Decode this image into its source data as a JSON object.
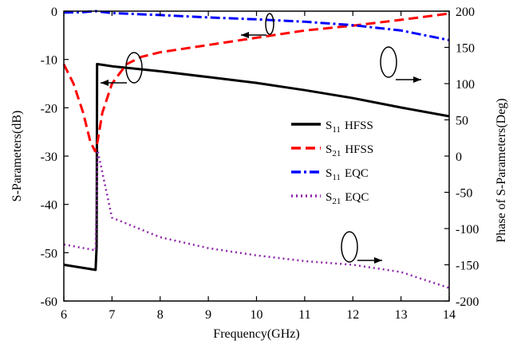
{
  "chart_data": {
    "type": "line",
    "xlabel": "Frequency(GHz)",
    "ylabel": "S-Parameters(dB)",
    "y2label": "Phase of S-Parameters(Deg)",
    "xlim": [
      6,
      14
    ],
    "ylim": [
      -60,
      0
    ],
    "y2lim": [
      -200,
      200
    ],
    "xticks": [
      6,
      7,
      8,
      9,
      10,
      11,
      12,
      13,
      14
    ],
    "yticks": [
      0,
      -10,
      -20,
      -30,
      -40,
      -50,
      -60
    ],
    "y2ticks": [
      200,
      150,
      100,
      50,
      0,
      -50,
      -100,
      -150,
      -200
    ],
    "grid": false,
    "legend_position": "center-right",
    "series": [
      {
        "name": "S11 HFSS",
        "base": "S",
        "sub": "11",
        "suffix": "HFSS",
        "color": "#000000",
        "dash": "solid",
        "axis": "phase",
        "x": [
          6,
          6.66,
          6.68,
          6.69,
          7,
          8,
          9,
          10,
          11,
          12,
          13,
          14
        ],
        "y": [
          -150,
          -157,
          -125,
          127,
          124,
          117,
          109,
          101,
          91,
          80,
          67,
          55
        ]
      },
      {
        "name": "S21 HFSS",
        "base": "S",
        "sub": "21",
        "suffix": "HFSS",
        "color": "#ff0000",
        "dash": "dashed",
        "axis": "mag",
        "x": [
          6,
          6.2,
          6.4,
          6.55,
          6.65,
          6.7,
          6.8,
          7,
          7.3,
          7.6,
          8,
          9,
          10,
          11,
          12,
          13,
          14
        ],
        "y": [
          -11,
          -15,
          -21,
          -27,
          -29,
          -27,
          -21,
          -15,
          -11,
          -9.5,
          -8.5,
          -7,
          -5.5,
          -4,
          -3,
          -1.8,
          -0.5
        ]
      },
      {
        "name": "S11 EQC",
        "base": "S",
        "sub": "11",
        "suffix": "EQC",
        "color": "#0000ff",
        "dash": "dashdot",
        "axis": "mag",
        "x": [
          6,
          6.4,
          6.66,
          7,
          8,
          9,
          10,
          11,
          12,
          13,
          14
        ],
        "y": [
          -0.3,
          -0.2,
          0,
          -0.4,
          -0.8,
          -1.3,
          -1.7,
          -2.2,
          -2.9,
          -4.0,
          -6.0
        ]
      },
      {
        "name": "S21 EQC",
        "base": "S",
        "sub": "21",
        "suffix": "EQC",
        "color": "#8e24aa",
        "dash": "dotted",
        "axis": "phase",
        "x": [
          6,
          6.66,
          6.7,
          7,
          8,
          9,
          10,
          11,
          12,
          13,
          14
        ],
        "y": [
          -122,
          -130,
          8,
          -85,
          -112,
          -127,
          -137,
          -145,
          -150,
          -160,
          -182
        ]
      }
    ]
  }
}
